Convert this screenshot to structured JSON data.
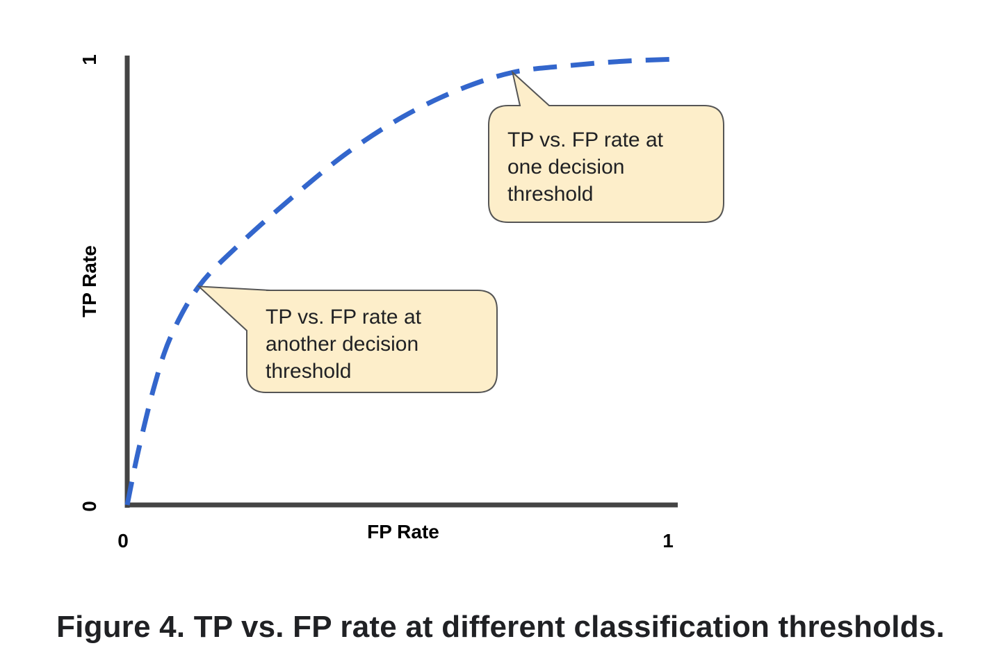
{
  "chart_data": {
    "type": "line",
    "title": "",
    "xlabel": "FP Rate",
    "ylabel": "TP Rate",
    "xlim": [
      0,
      1
    ],
    "ylim": [
      0,
      1
    ],
    "x_ticks": [
      "0",
      "1"
    ],
    "y_ticks": [
      "0",
      "1"
    ],
    "grid": false,
    "series": [
      {
        "style": "dashed",
        "color": "#3366cc",
        "points": [
          [
            0.0,
            0.0
          ],
          [
            0.02,
            0.12
          ],
          [
            0.05,
            0.27
          ],
          [
            0.08,
            0.38
          ],
          [
            0.13,
            0.49
          ],
          [
            0.2,
            0.58
          ],
          [
            0.3,
            0.69
          ],
          [
            0.4,
            0.79
          ],
          [
            0.5,
            0.87
          ],
          [
            0.6,
            0.93
          ],
          [
            0.7,
            0.97
          ],
          [
            0.8,
            0.985
          ],
          [
            0.9,
            0.995
          ],
          [
            1.0,
            1.0
          ]
        ]
      }
    ],
    "annotations": [
      {
        "id": "upper",
        "lines": [
          "TP vs. FP rate at",
          "one decision",
          "threshold"
        ],
        "point": [
          0.7,
          0.97
        ],
        "fill": "#fdeeca",
        "stroke": "#555555"
      },
      {
        "id": "lower",
        "lines": [
          "TP vs. FP rate at",
          "another decision",
          "threshold"
        ],
        "point": [
          0.13,
          0.49
        ],
        "fill": "#fdeeca",
        "stroke": "#555555"
      }
    ]
  },
  "caption": "Figure 4. TP vs. FP rate at different classification thresholds."
}
